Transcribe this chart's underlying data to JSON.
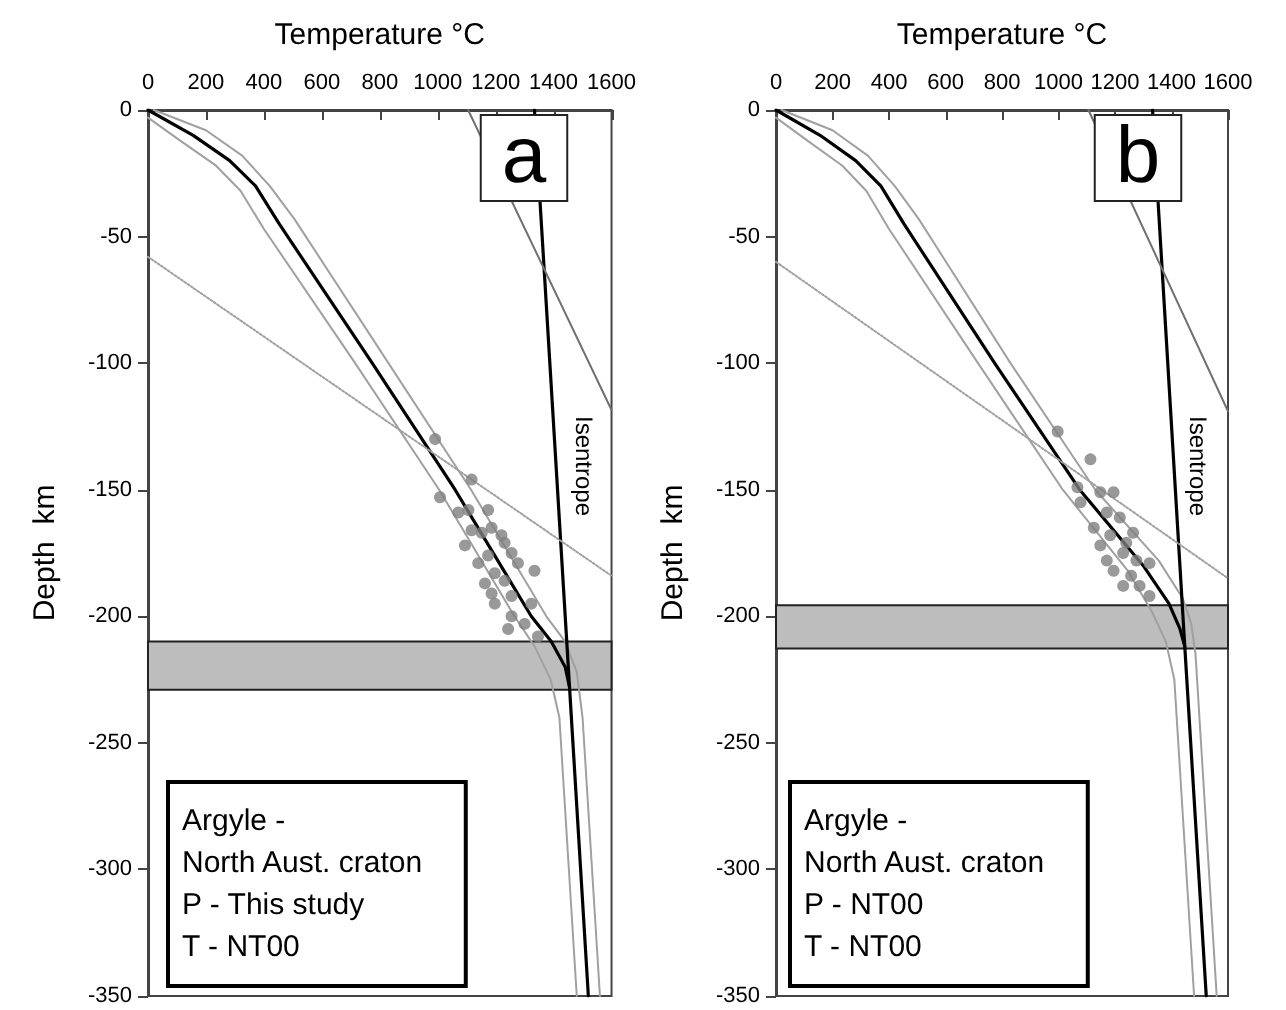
{
  "chart_data": [
    {
      "type": "line",
      "xlabel": "Temperature °C",
      "ylabel": "Depth  km",
      "xlim": [
        0,
        1600
      ],
      "xticks": [
        0,
        200,
        400,
        600,
        800,
        1000,
        1200,
        1400,
        1600
      ],
      "ylim": [
        -350,
        0
      ],
      "yticks": [
        -350,
        -300,
        -250,
        -200,
        -150,
        -100,
        -50,
        0
      ],
      "grid": false,
      "marker": "none",
      "series": [
        {
          "color": "#a0a0a0",
          "x": [
            0,
            110,
            235,
            320,
            400,
            715,
            1005,
            1265,
            1335,
            1390,
            1420,
            1480
          ],
          "values": [
            -3,
            -12,
            -22,
            -32,
            -47,
            -100,
            -150,
            -200,
            -212,
            -225,
            -240,
            -350
          ]
        },
        {
          "color": "#a0a0a0",
          "x": [
            20,
            200,
            325,
            420,
            505,
            830,
            1115,
            1375,
            1440,
            1480,
            1500,
            1560
          ],
          "values": [
            0,
            -8,
            -18,
            -30,
            -43,
            -100,
            -150,
            -200,
            -210,
            -222,
            -240,
            -350
          ]
        },
        {
          "color": "#000000",
          "x": [
            0,
            156,
            282,
            371,
            453,
            774,
            1060,
            1323,
            1392,
            1440,
            1455,
            1520
          ],
          "values": [
            0,
            -10,
            -20,
            -30,
            -45,
            -100,
            -150,
            -200,
            -210,
            -220,
            -228,
            -350
          ]
        },
        {
          "color": "#000000",
          "x": [
            1334,
            1455
          ],
          "values": [
            0,
            -228
          ]
        },
        {
          "color": "#707070",
          "x": [
            1105,
            1600
          ],
          "values": [
            0,
            -118.5
          ]
        },
        {
          "color": "#a0a0a0",
          "line_style": "dotted",
          "x": [
            0,
            1600
          ],
          "values": [
            -58,
            -184
          ]
        },
        {
          "type": "scatter",
          "marker": "circle",
          "color": "#808080",
          "x": [
            991,
            1117,
            1008,
            1106,
            1174,
            1071,
            1117,
            1186,
            1231,
            1094,
            1174,
            1255,
            1140,
            1277,
            1334,
            1197,
            1163,
            1231,
            1186,
            1255,
            1323,
            1197,
            1255,
            1243,
            1300,
            1346,
            1152,
            1220
          ],
          "values": [
            -130,
            -146,
            -153,
            -158,
            -158,
            -159,
            -166,
            -165,
            -171,
            -172,
            -176,
            -175,
            -179,
            -179,
            -182,
            -183,
            -187,
            -186,
            -191,
            -192,
            -195,
            -195,
            -200,
            -205,
            -203,
            -208,
            -167,
            -168
          ]
        }
      ],
      "bands": [
        {
          "axis": "y",
          "from": -229,
          "to": -210,
          "color": "#bdbdbd"
        }
      ],
      "annotations": [
        "a",
        "Argyle -\nNorth Aust. craton\nP - This study\nT - NT00",
        "Isentrope"
      ]
    },
    {
      "type": "line",
      "xlabel": "Temperature °C",
      "ylabel": "Depth  km",
      "xlim": [
        0,
        1600
      ],
      "xticks": [
        0,
        200,
        400,
        600,
        800,
        1000,
        1200,
        1400,
        1600
      ],
      "ylim": [
        -350,
        0
      ],
      "yticks": [
        -350,
        -300,
        -250,
        -200,
        -150,
        -100,
        -50,
        0
      ],
      "grid": false,
      "marker": "none",
      "series": [
        {
          "color": "#a0a0a0",
          "x": [
            0,
            110,
            235,
            320,
            400,
            715,
            1015,
            1245,
            1330,
            1380,
            1410,
            1480
          ],
          "values": [
            -3,
            -12,
            -22,
            -32,
            -47,
            -100,
            -150,
            -182,
            -198,
            -210,
            -225,
            -350
          ]
        },
        {
          "color": "#a0a0a0",
          "x": [
            20,
            200,
            325,
            420,
            505,
            830,
            1130,
            1355,
            1440,
            1470,
            1485,
            1560
          ],
          "values": [
            0,
            -8,
            -18,
            -30,
            -43,
            -100,
            -150,
            -178,
            -193,
            -203,
            -215,
            -350
          ]
        },
        {
          "color": "#000000",
          "x": [
            0,
            156,
            282,
            371,
            453,
            774,
            1075,
            1300,
            1391,
            1430,
            1447,
            1523
          ],
          "values": [
            0,
            -10,
            -20,
            -30,
            -45,
            -100,
            -150,
            -180,
            -195,
            -205,
            -212,
            -350
          ]
        },
        {
          "color": "#000000",
          "x": [
            1333,
            1447
          ],
          "values": [
            0,
            -212
          ]
        },
        {
          "color": "#707070",
          "x": [
            1106,
            1600
          ],
          "values": [
            0,
            -119
          ]
        },
        {
          "color": "#a0a0a0",
          "line_style": "dotted",
          "x": [
            0,
            1600
          ],
          "values": [
            -60,
            -185
          ]
        },
        {
          "type": "scatter",
          "marker": "circle",
          "color": "#808080",
          "x": [
            997,
            1113,
            1067,
            1148,
            1195,
            1078,
            1171,
            1217,
            1125,
            1183,
            1264,
            1148,
            1229,
            1276,
            1195,
            1322,
            1257,
            1229,
            1287,
            1322,
            1171,
            1240
          ],
          "values": [
            -127,
            -138,
            -149,
            -151,
            -151,
            -155,
            -159,
            -161,
            -165,
            -168,
            -167,
            -172,
            -175,
            -178,
            -182,
            -179,
            -184,
            -188,
            -188,
            -192,
            -178,
            -171
          ]
        }
      ],
      "bands": [
        {
          "axis": "y",
          "from": -212.7,
          "to": -195.6,
          "color": "#bdbdbd"
        }
      ],
      "annotations": [
        "b",
        "Argyle -\nNorth Aust. craton\nP - NT00\nT - NT00",
        "Isentrope"
      ]
    }
  ]
}
